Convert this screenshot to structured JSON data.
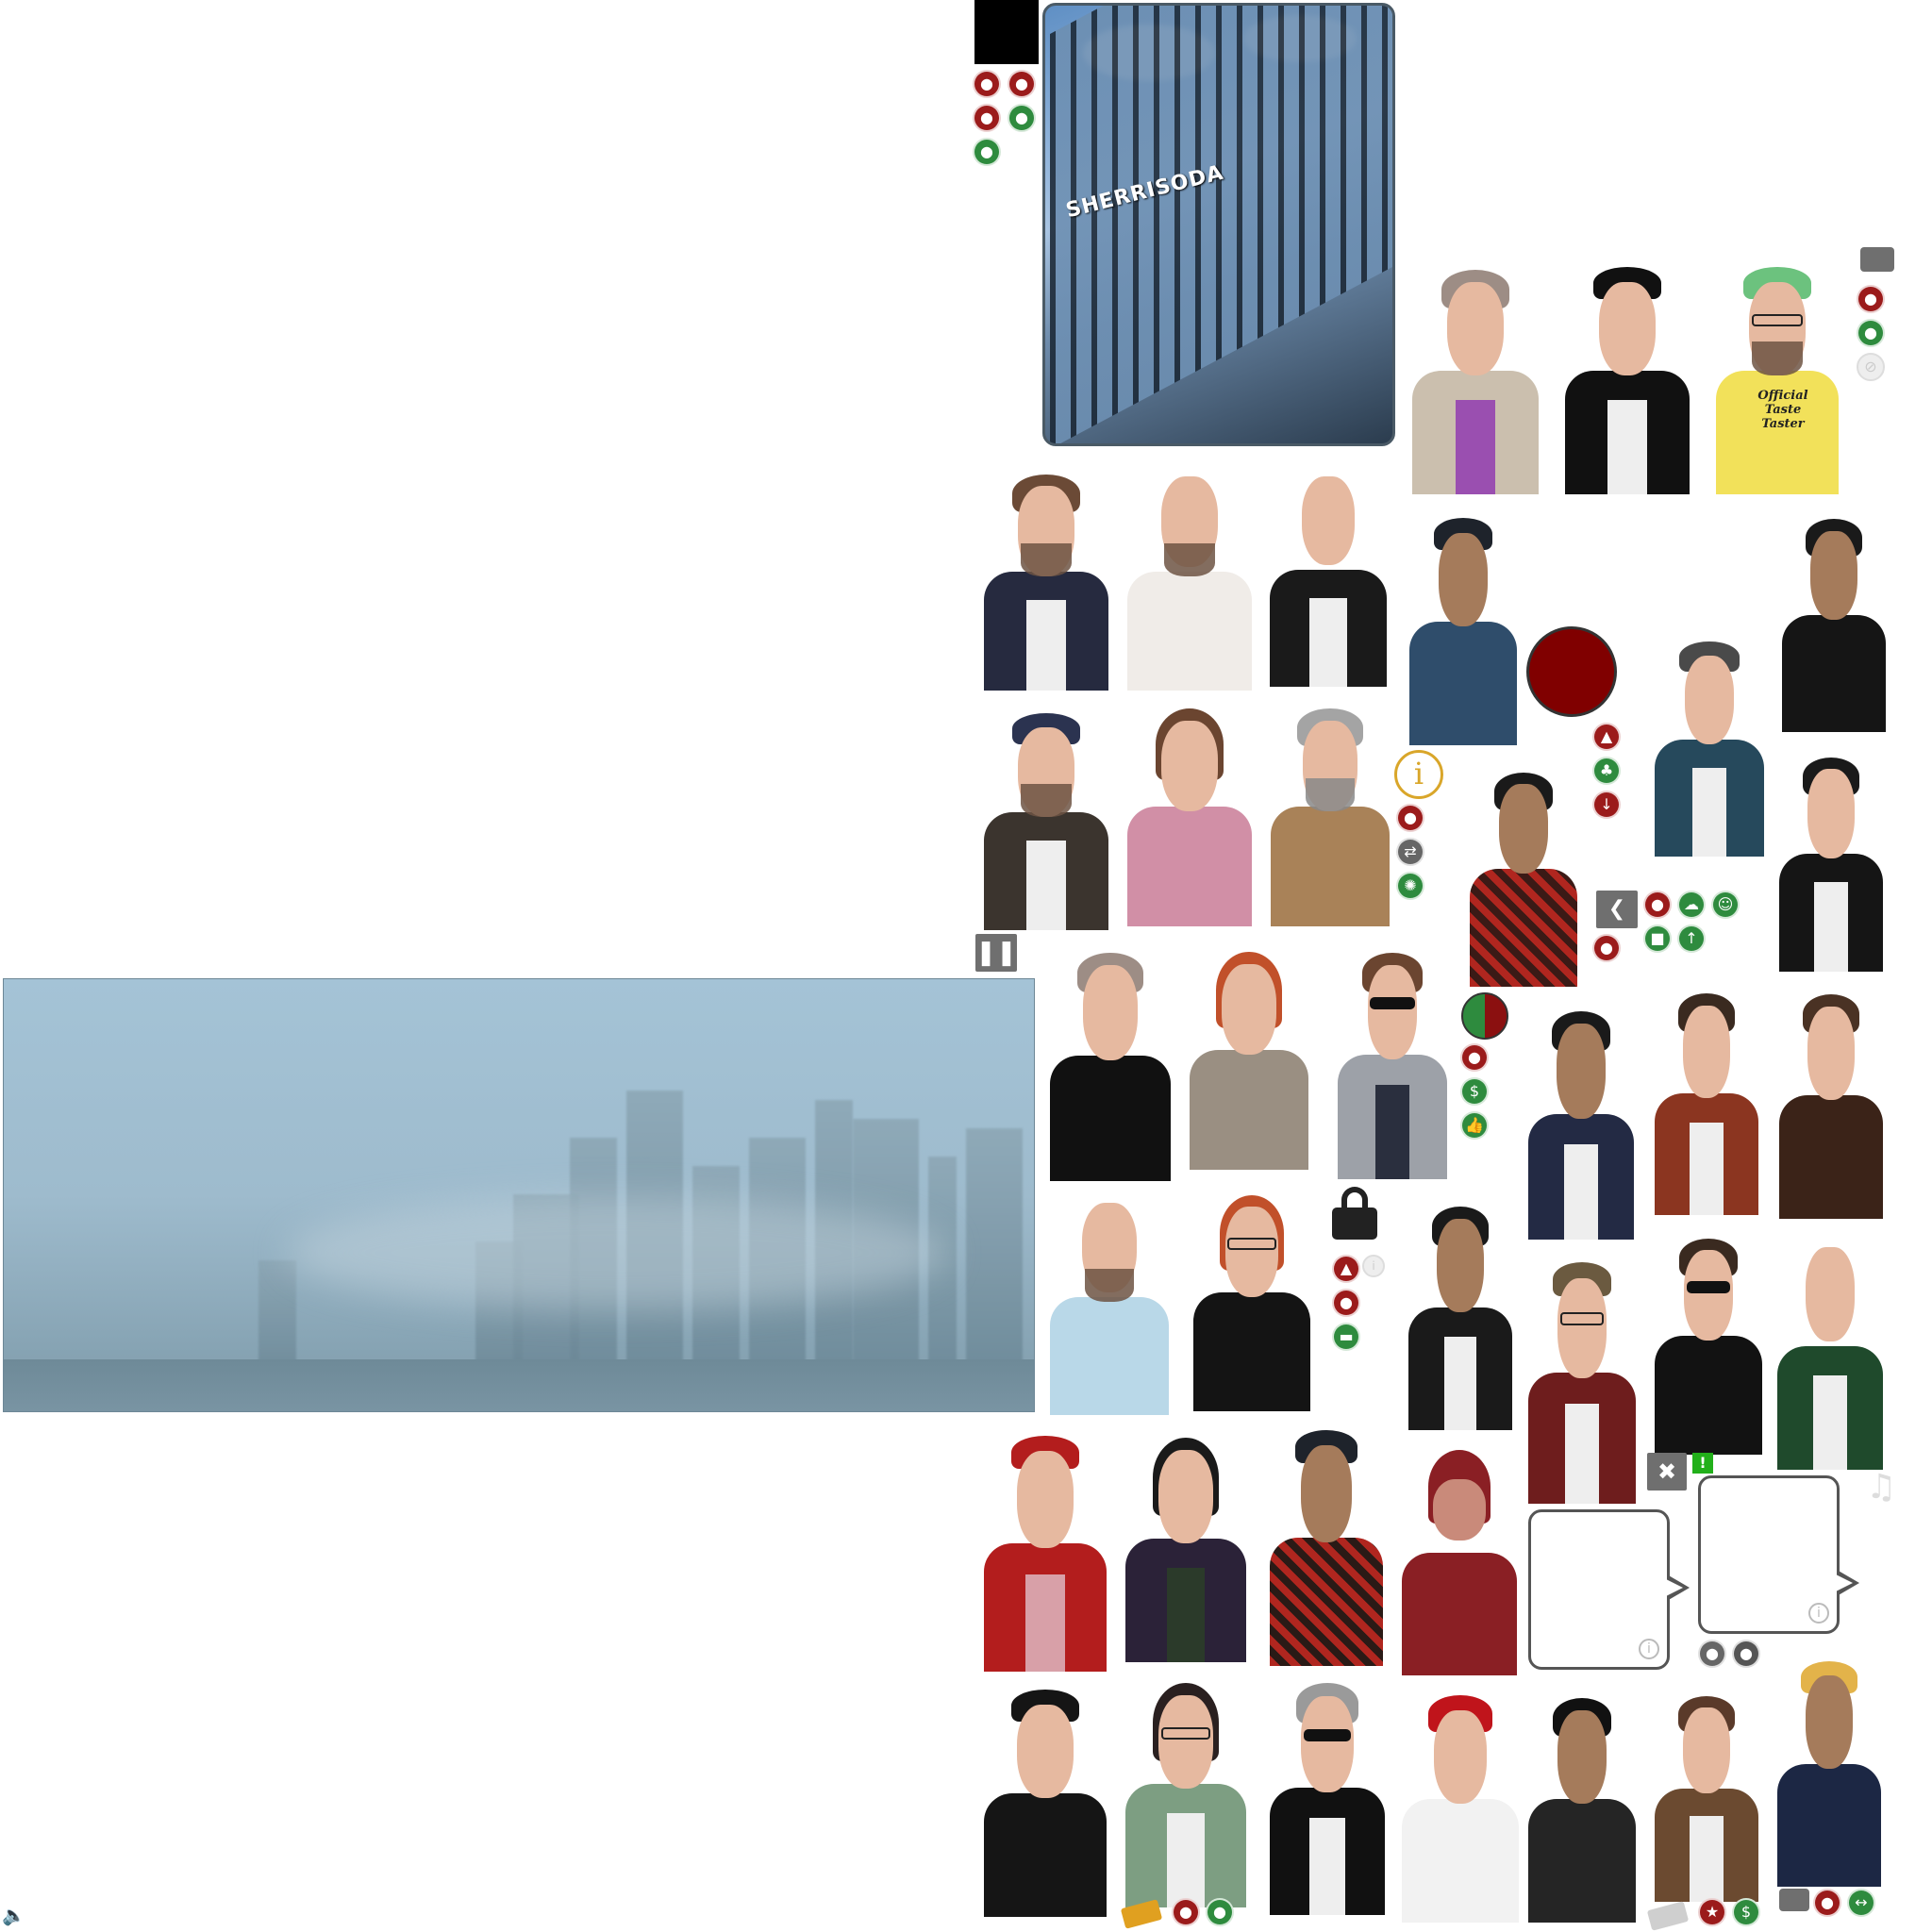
{
  "billboard": {
    "sign_text": "SHERRISODA"
  },
  "tshirt": {
    "text": "Official Taste Taster"
  },
  "icons": {
    "pause": "pause-icon",
    "close": "close-icon",
    "back": "chevron-left-icon",
    "info": "info-icon",
    "exclamation": "!",
    "music": "music-note-icon",
    "speaker": "speaker-icon"
  },
  "colors": {
    "accent_red": "#9b1b1b",
    "accent_green": "#2e8b3e",
    "button_gray": "#6f6f6f",
    "dark_red": "#800000",
    "info_gold": "#d9a62a"
  },
  "glyphs": {
    "pause": "❚❚",
    "close": "✖",
    "back": "❮",
    "info": "i",
    "music": "♫",
    "speaker": "🔈",
    "excl": "!"
  }
}
